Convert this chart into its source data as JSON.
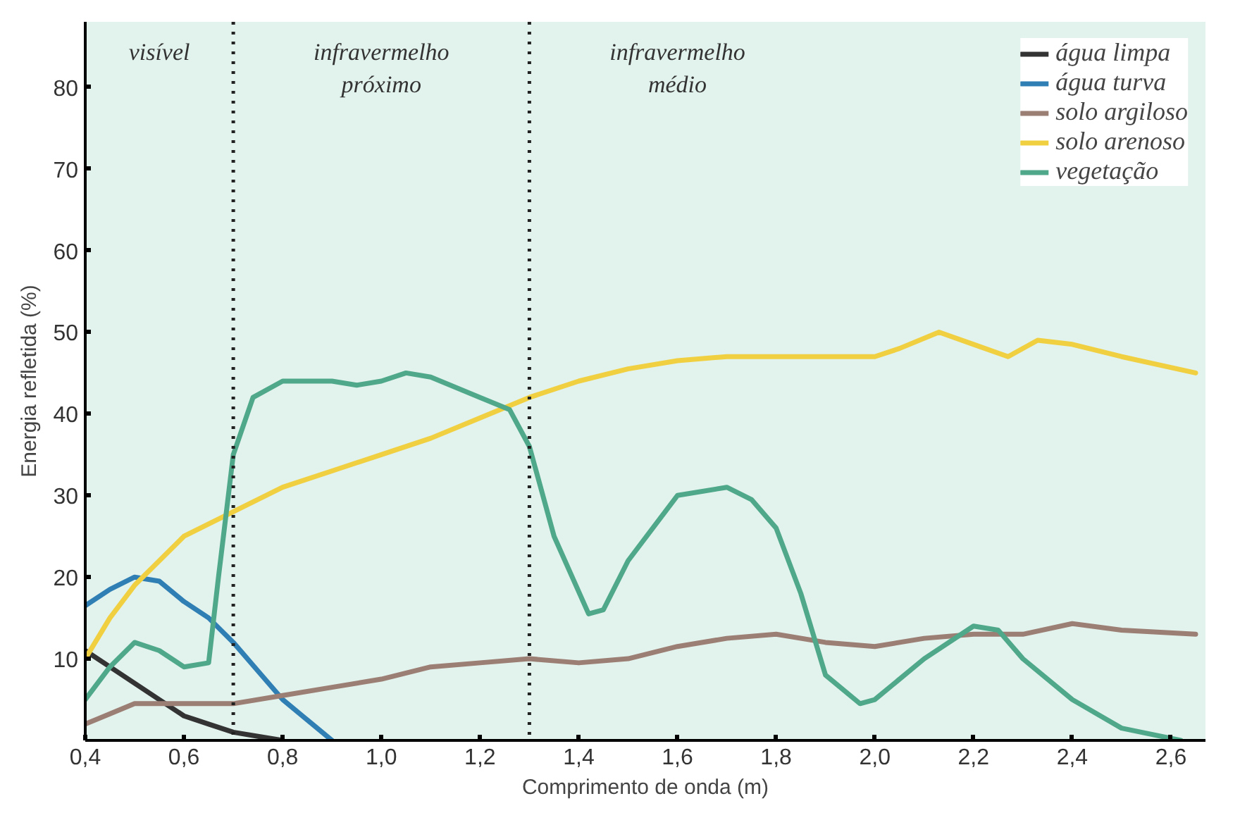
{
  "chart_data": {
    "type": "line",
    "xlabel": "Comprimento de onda (m)",
    "ylabel": "Energia refletida (%)",
    "xlim": [
      0.4,
      2.67
    ],
    "ylim": [
      0,
      88
    ],
    "xticks": [
      {
        "value": 0.4,
        "label": "0,4"
      },
      {
        "value": 0.6,
        "label": "0,6"
      },
      {
        "value": 0.8,
        "label": "0,8"
      },
      {
        "value": 1.0,
        "label": "1,0"
      },
      {
        "value": 1.2,
        "label": "1,2"
      },
      {
        "value": 1.4,
        "label": "1,4"
      },
      {
        "value": 1.6,
        "label": "1,6"
      },
      {
        "value": 1.8,
        "label": "1,8"
      },
      {
        "value": 2.0,
        "label": "2,0"
      },
      {
        "value": 2.2,
        "label": "2,2"
      },
      {
        "value": 2.4,
        "label": "2,4"
      },
      {
        "value": 2.6,
        "label": "2,6"
      }
    ],
    "yticks": [
      10,
      20,
      30,
      40,
      50,
      60,
      70,
      80
    ],
    "grid": false,
    "legend": "top right",
    "ref_lines": [
      {
        "axis": "x",
        "value": 0.7,
        "line_style": "dotted",
        "color": "#222222"
      },
      {
        "axis": "x",
        "value": 1.3,
        "line_style": "dotted",
        "color": "#222222"
      }
    ],
    "annotations": [
      "visível",
      "infravermelho\npróximo",
      "infravermelho\nmédio"
    ],
    "series": [
      {
        "name": "água limpa",
        "color": "#333333",
        "x": [
          0.4,
          0.45,
          0.5,
          0.55,
          0.6,
          0.65,
          0.7,
          0.75,
          0.8
        ],
        "values": [
          11,
          9,
          7,
          5,
          3,
          2,
          1,
          0.5,
          0
        ]
      },
      {
        "name": "água turva",
        "color": "#2f7fb5",
        "x": [
          0.4,
          0.45,
          0.5,
          0.55,
          0.6,
          0.65,
          0.7,
          0.75,
          0.8,
          0.85,
          0.9
        ],
        "values": [
          16.5,
          18.5,
          20,
          19.5,
          17,
          15,
          12,
          8.5,
          5,
          2.5,
          0
        ]
      },
      {
        "name": "solo argiloso",
        "color": "#9b7e74",
        "x": [
          0.4,
          0.5,
          0.6,
          0.7,
          0.8,
          0.9,
          1.0,
          1.1,
          1.2,
          1.3,
          1.4,
          1.5,
          1.6,
          1.7,
          1.8,
          1.9,
          2.0,
          2.1,
          2.2,
          2.3,
          2.4,
          2.5,
          2.65
        ],
        "values": [
          2,
          4.5,
          4.5,
          4.5,
          5.5,
          6.5,
          7.5,
          9,
          9.5,
          10,
          9.5,
          10,
          11.5,
          12.5,
          13,
          12,
          11.5,
          12.5,
          13,
          13,
          14.3,
          13.5,
          13
        ]
      },
      {
        "name": "solo arenoso",
        "color": "#f0d040",
        "x": [
          0.4,
          0.45,
          0.5,
          0.6,
          0.7,
          0.8,
          0.9,
          1.0,
          1.1,
          1.2,
          1.3,
          1.4,
          1.5,
          1.6,
          1.7,
          1.8,
          1.9,
          2.0,
          2.05,
          2.13,
          2.2,
          2.27,
          2.33,
          2.4,
          2.5,
          2.65
        ],
        "values": [
          10,
          15,
          19,
          25,
          28,
          31,
          33,
          35,
          37,
          39.5,
          42,
          44,
          45.5,
          46.5,
          47,
          47,
          47,
          47,
          48,
          50,
          48.5,
          47,
          49,
          48.5,
          47,
          45
        ]
      },
      {
        "name": "vegetação",
        "color": "#4fa88a",
        "x": [
          0.4,
          0.45,
          0.5,
          0.55,
          0.6,
          0.65,
          0.67,
          0.7,
          0.74,
          0.8,
          0.9,
          0.95,
          1.0,
          1.05,
          1.1,
          1.2,
          1.26,
          1.3,
          1.35,
          1.42,
          1.45,
          1.5,
          1.6,
          1.7,
          1.75,
          1.8,
          1.85,
          1.9,
          1.97,
          2.0,
          2.1,
          2.2,
          2.25,
          2.3,
          2.4,
          2.5,
          2.62
        ],
        "values": [
          5,
          9,
          12,
          11,
          9,
          9.5,
          20,
          35,
          42,
          44,
          44,
          43.5,
          44,
          45,
          44.5,
          42,
          40.5,
          36,
          25,
          15.5,
          16,
          22,
          30,
          31,
          29.5,
          26,
          18,
          8,
          4.5,
          5,
          10,
          14,
          13.5,
          10,
          5,
          1.5,
          0
        ]
      }
    ]
  }
}
